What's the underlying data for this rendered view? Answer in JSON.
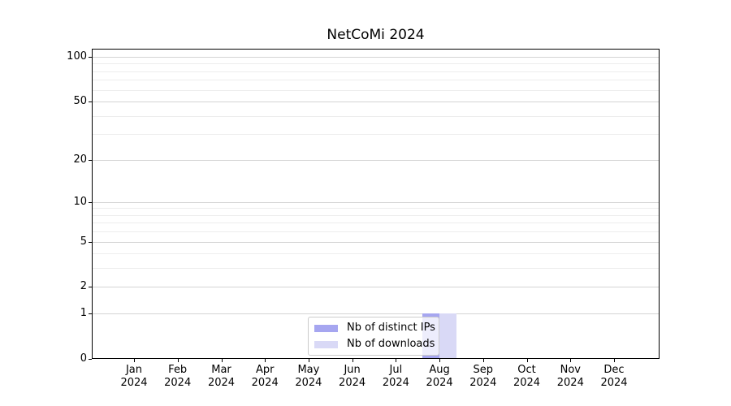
{
  "chart_data": {
    "type": "bar",
    "title": "NetCoMi 2024",
    "categories": [
      "Jan 2024",
      "Feb 2024",
      "Mar 2024",
      "Apr 2024",
      "May 2024",
      "Jun 2024",
      "Jul 2024",
      "Aug 2024",
      "Sep 2024",
      "Oct 2024",
      "Nov 2024",
      "Dec 2024"
    ],
    "series": [
      {
        "name": "Nb of distinct IPs",
        "color": "#a6a6f0",
        "values": [
          0,
          0,
          0,
          0,
          0,
          0,
          0,
          1,
          0,
          0,
          0,
          0
        ]
      },
      {
        "name": "Nb of downloads",
        "color": "#d9d9f6",
        "values": [
          0,
          0,
          0,
          0,
          0,
          0,
          0,
          1,
          0,
          0,
          0,
          0
        ]
      }
    ],
    "yscale": "log1p",
    "ylim": [
      0,
      113
    ],
    "y_major_ticks": [
      0,
      1,
      2,
      5,
      10,
      20,
      50,
      100
    ],
    "y_minor_gridlines": [
      3,
      4,
      6,
      7,
      8,
      9,
      30,
      40,
      60,
      70,
      80,
      90
    ],
    "xlabel": "",
    "ylabel": "",
    "grid": "horizontal",
    "legend_position": "lower center (inside plot)",
    "colors": {
      "grid_major": "#d4d4d4",
      "grid_minor": "#ededed",
      "spine": "#000000",
      "background": "#ffffff"
    }
  }
}
